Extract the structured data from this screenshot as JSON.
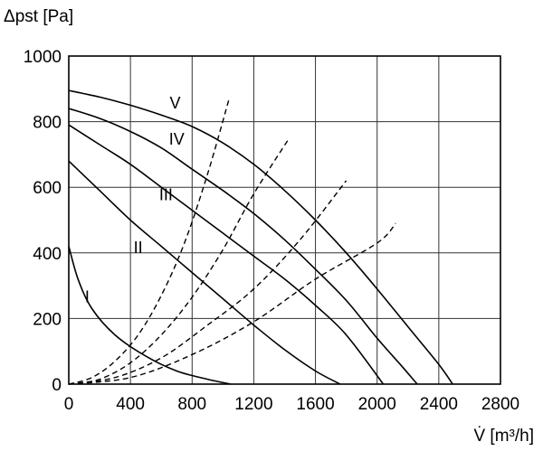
{
  "chart_data": {
    "type": "line",
    "xlabel": "V̇ [m³/h]",
    "ylabel": "Δpst [Pa]",
    "xlim": [
      0,
      2800
    ],
    "ylim": [
      0,
      1000
    ],
    "xticks": [
      "0",
      "400",
      "800",
      "1200",
      "1600",
      "2000",
      "2400",
      "2800"
    ],
    "yticks": [
      "0",
      "200",
      "400",
      "600",
      "800",
      "1000"
    ],
    "grid": true,
    "series": [
      {
        "name": "I",
        "style": "solid",
        "x": [
          0,
          60,
          150,
          300,
          500,
          700,
          900,
          1050
        ],
        "y": [
          420,
          320,
          230,
          150,
          85,
          40,
          15,
          0
        ]
      },
      {
        "name": "II",
        "style": "solid",
        "x": [
          0,
          200,
          400,
          600,
          800,
          1000,
          1200,
          1400,
          1600,
          1760
        ],
        "y": [
          680,
          590,
          500,
          420,
          340,
          260,
          180,
          105,
          40,
          0
        ]
      },
      {
        "name": "III",
        "style": "solid",
        "x": [
          0,
          200,
          400,
          600,
          800,
          1000,
          1200,
          1400,
          1600,
          1800,
          2040
        ],
        "y": [
          790,
          730,
          670,
          600,
          530,
          460,
          390,
          320,
          240,
          150,
          0
        ]
      },
      {
        "name": "IV",
        "style": "solid",
        "x": [
          0,
          200,
          400,
          600,
          800,
          1000,
          1200,
          1400,
          1600,
          1800,
          2000,
          2150,
          2260
        ],
        "y": [
          840,
          810,
          770,
          720,
          655,
          590,
          520,
          440,
          350,
          255,
          140,
          60,
          0
        ]
      },
      {
        "name": "V",
        "style": "solid",
        "x": [
          0,
          200,
          400,
          600,
          800,
          1000,
          1200,
          1400,
          1600,
          1800,
          2000,
          2200,
          2400,
          2490
        ],
        "y": [
          895,
          875,
          850,
          820,
          785,
          735,
          670,
          590,
          500,
          400,
          290,
          175,
          60,
          0
        ]
      },
      {
        "name": "",
        "style": "dashed",
        "x": [
          0,
          150,
          300,
          450,
          600,
          750,
          900,
          1040
        ],
        "y": [
          0,
          20,
          70,
          150,
          270,
          430,
          640,
          870
        ]
      },
      {
        "name": "",
        "style": "dashed",
        "x": [
          0,
          200,
          400,
          600,
          800,
          1000,
          1200,
          1430
        ],
        "y": [
          0,
          15,
          65,
          150,
          265,
          410,
          580,
          750
        ]
      },
      {
        "name": "",
        "style": "dashed",
        "x": [
          0,
          300,
          600,
          900,
          1200,
          1500,
          1800
        ],
        "y": [
          0,
          20,
          80,
          180,
          290,
          440,
          620
        ]
      },
      {
        "name": "",
        "style": "dashed",
        "x": [
          0,
          400,
          800,
          1200,
          1600,
          2000,
          2120
        ],
        "y": [
          0,
          20,
          90,
          190,
          320,
          430,
          490
        ]
      }
    ]
  }
}
